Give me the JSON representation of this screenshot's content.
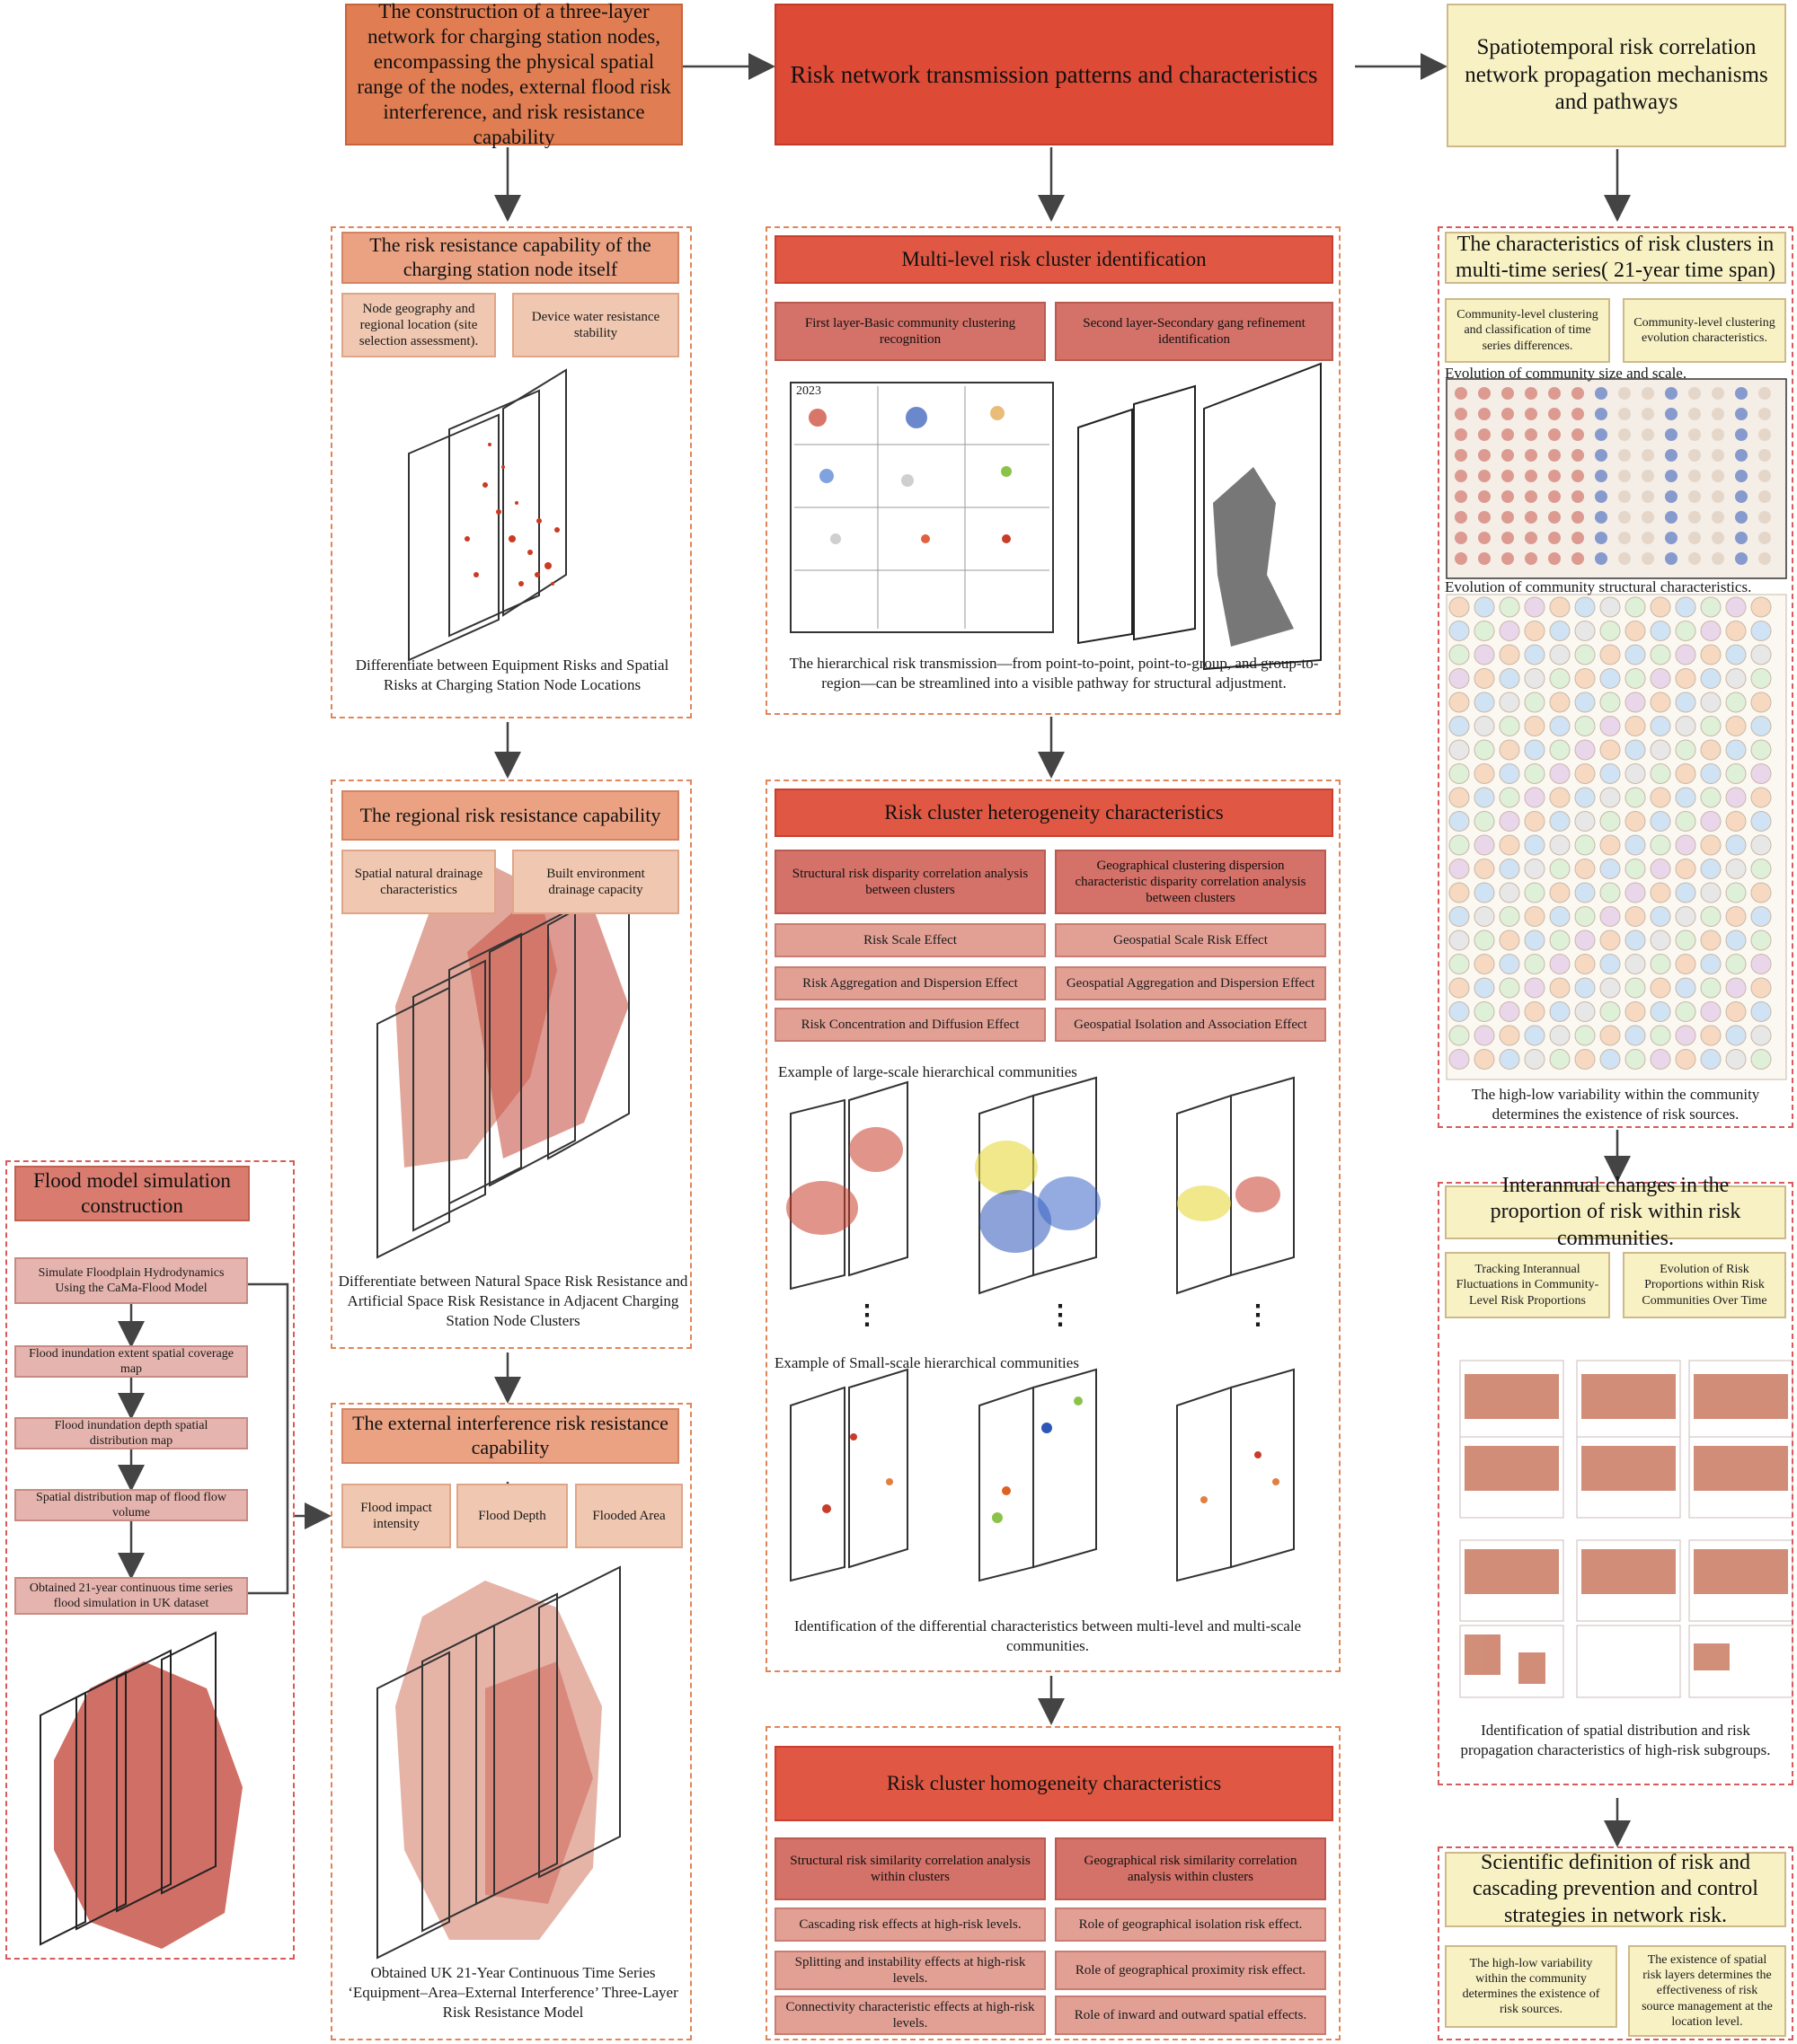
{
  "top": {
    "col1_title": "The construction of a three-layer network for charging station nodes, encompassing the physical spatial range of the nodes, external flood risk interference, and risk resistance capability",
    "col2_title": "Risk network transmission patterns and characteristics",
    "col3_title": "Spatiotemporal risk correlation network propagation mechanisms and pathways"
  },
  "flood": {
    "title": "Flood model simulation construction",
    "steps": [
      "Simulate Floodplain Hydrodynamics Using the CaMa-Flood Model",
      "Flood inundation extent spatial coverage map",
      "Flood inundation depth spatial distribution map",
      "Spatial distribution map of flood flow volume",
      "Obtained 21-year continuous time series flood simulation in UK dataset"
    ]
  },
  "col1": {
    "node": {
      "title": "The risk resistance capability of the charging station node itself",
      "items": [
        "Node geography and regional location (site selection assessment).",
        "Device water resistance stability"
      ],
      "caption": "Differentiate between Equipment Risks and Spatial Risks at Charging Station Node Locations"
    },
    "regional": {
      "title": "The regional risk resistance capability",
      "items": [
        "Spatial natural drainage characteristics",
        "Built environment drainage capacity"
      ],
      "caption": "Differentiate between Natural Space Risk Resistance and Artificial Space Risk Resistance in Adjacent Charging Station Node Clusters"
    },
    "external": {
      "title": "The external interference risk resistance capability",
      "items": [
        "Flood impact intensity",
        "Flood Depth",
        "Flooded Area"
      ],
      "caption": "Obtained UK 21-Year Continuous Time Series ‘Equipment–Area–External Interference’ Three-Layer Risk Resistance Model"
    }
  },
  "col2": {
    "multilevel": {
      "title": "Multi-level risk cluster identification",
      "items": [
        "First layer-Basic community clustering recognition",
        "Second layer-Secondary gang refinement identification"
      ],
      "year": "2023",
      "caption": "The hierarchical risk transmission—from point-to-point, point-to-group, and group-to-region—can be streamlined into a visible pathway for structural adjustment."
    },
    "heterogeneity": {
      "title": "Risk cluster heterogeneity characteristics",
      "head_left": "Structural risk disparity correlation analysis between clusters",
      "head_right": "Geographical clustering dispersion characteristic disparity correlation analysis between clusters",
      "left": [
        "Risk Scale Effect",
        "Risk Aggregation and Dispersion Effect",
        "Risk Concentration and Diffusion Effect"
      ],
      "right": [
        "Geospatial Scale Risk Effect",
        "Geospatial Aggregation and Dispersion Effect",
        "Geospatial Isolation and Association Effect"
      ],
      "large_label": "Example of large-scale hierarchical communities",
      "small_label": "Example of Small-scale hierarchical communities",
      "caption": "Identification of the differential characteristics between multi-level and multi-scale communities."
    },
    "homogeneity": {
      "title": "Risk cluster homogeneity characteristics",
      "head_left": "Structural risk similarity correlation analysis within clusters",
      "head_right": "Geographical risk similarity correlation analysis within clusters",
      "left": [
        "Cascading risk effects at high-risk levels.",
        "Splitting and instability effects at high-risk levels.",
        "Connectivity characteristic effects at high-risk levels."
      ],
      "right": [
        "Role of geographical isolation risk effect.",
        "Role of geographical proximity risk effect.",
        "Role of inward and outward spatial effects."
      ]
    }
  },
  "col3": {
    "multitime": {
      "title": "The characteristics of risk clusters in multi-time series( 21-year time span)",
      "items": [
        "Community-level clustering and classification of time series differences.",
        "Community-level clustering evolution characteristics."
      ],
      "label_size": "Evolution of community size and scale.",
      "label_struct": "Evolution of community structural characteristics.",
      "caption": "The high-low variability within the community determines the existence of risk sources."
    },
    "interannual": {
      "title": "Interannual changes in the proportion of risk within risk communities.",
      "items": [
        "Tracking Interannual Fluctuations in Community-Level Risk Proportions",
        "Evolution of Risk Proportions within Risk Communities Over Time"
      ],
      "caption": "Identification of spatial distribution and risk propagation characteristics of high-risk subgroups."
    },
    "scientific": {
      "title": "Scientific definition of risk and cascading prevention and control strategies in network risk.",
      "items": [
        "The high-low variability within the community determines the existence of risk sources.",
        "The existence of spatial risk layers determines the effectiveness of risk source management at the location level."
      ]
    }
  },
  "colors": {
    "orange": "#e07d52",
    "red": "#dd4a36",
    "yellow": "#f8f1c4",
    "map_red": "#c8564a",
    "blue": "#2e56b8"
  }
}
